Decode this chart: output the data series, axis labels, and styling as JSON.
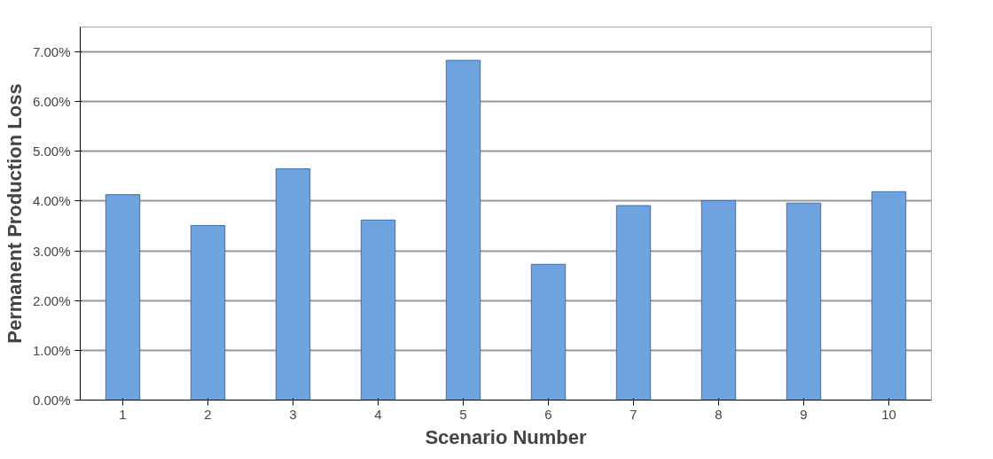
{
  "chart_data": {
    "type": "bar",
    "xlabel": "Scenario Number",
    "ylabel": "Permanent Production Loss",
    "categories": [
      "1",
      "2",
      "3",
      "4",
      "5",
      "6",
      "7",
      "8",
      "9",
      "10"
    ],
    "values": [
      4.13,
      3.51,
      4.65,
      3.62,
      6.83,
      2.73,
      3.91,
      4.01,
      3.96,
      4.19
    ],
    "color": "#6fa3e0",
    "ylim": [
      0,
      7.5
    ],
    "yticks": [
      {
        "value": 0,
        "label": "0.00%"
      },
      {
        "value": 1,
        "label": "1.00%"
      },
      {
        "value": 2,
        "label": "2.00%"
      },
      {
        "value": 3,
        "label": "3.00%"
      },
      {
        "value": 4,
        "label": "4.00%"
      },
      {
        "value": 5,
        "label": "5.00%"
      },
      {
        "value": 6,
        "label": "6.00%"
      },
      {
        "value": 7,
        "label": "7.00%"
      }
    ],
    "grid": "y"
  }
}
